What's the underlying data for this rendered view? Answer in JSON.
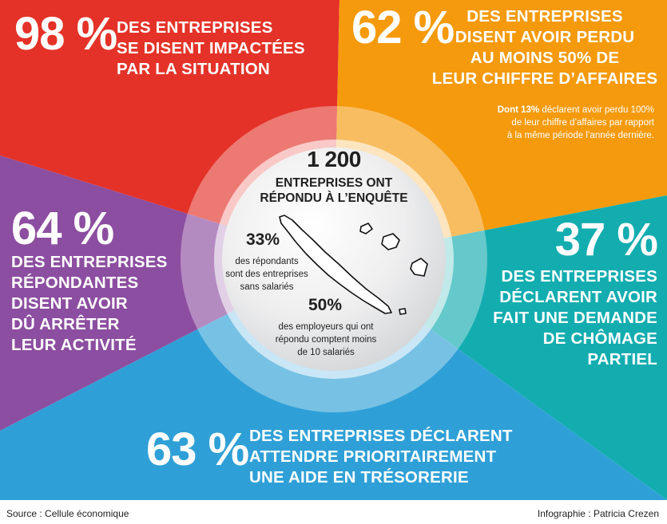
{
  "colors": {
    "red": "#e43228",
    "orange": "#f59a0c",
    "teal": "#13adb0",
    "blue": "#2fa0d7",
    "purple": "#8c4ea0",
    "center": "#e9eaeb"
  },
  "chart_data": {
    "type": "pie",
    "slices": [
      {
        "key": "impacted",
        "value": 98,
        "label": "98 %",
        "text": "DES ENTREPRISES SE DISENT IMPACTÉES PAR LA SITUATION",
        "color": "#e43228"
      },
      {
        "key": "revenue_loss",
        "value": 62,
        "label": "62 %",
        "text": "DES ENTREPRISES DISENT AVOIR PERDU AU MOINS 50% DE LEUR CHIFFRE D’AFFAIRES",
        "color": "#f59a0c"
      },
      {
        "key": "partial_unemployment",
        "value": 37,
        "label": "37 %",
        "text": "DES ENTREPRISES DÉCLARENT AVOIR FAIT UNE DEMANDE DE CHÔMAGE PARTIEL",
        "color": "#13adb0"
      },
      {
        "key": "treasury_aid",
        "value": 63,
        "label": "63 %",
        "text": "DES ENTREPRISES DÉCLARENT ATTENDRE PRIORITAIREMENT UNE AIDE EN TRÉSORERIE",
        "color": "#2fa0d7"
      },
      {
        "key": "stopped_activity",
        "value": 64,
        "label": "64 %",
        "text": "DES ENTREPRISES RÉPONDANTES DISENT AVOIR DÛ ARRÊTER LEUR ACTIVITÉ",
        "color": "#8c4ea0"
      }
    ],
    "center": {
      "respondents": 1200,
      "respondents_label": "1 200",
      "respondents_text": "ENTREPRISES ONT RÉPONDU À L’ENQUÊTE",
      "no_employees_pct": 33,
      "no_employees_label": "33%",
      "no_employees_text": "des répondants sont des entreprises sans salariés",
      "small_employers_pct": 50,
      "small_employers_label": "50%",
      "small_employers_text": "des employeurs qui ont répondu comptent moins de 10 salariés"
    }
  },
  "tiles": {
    "impacted": {
      "pct": "98 %",
      "line1": "DES ENTREPRISES",
      "line2": "SE DISENT IMPACTÉES",
      "line3": "PAR LA SITUATION"
    },
    "revenue_loss": {
      "pct": "62 %",
      "line1": "DES ENTREPRISES",
      "line2": "DISENT AVOIR PERDU",
      "line3": "AU MOINS 50% DE",
      "line4": "LEUR CHIFFRE D’AFFAIRES",
      "note_bold": "Dont 13%",
      "note_rest": " déclarent avoir perdu 100%",
      "note_line2": "de leur chiffre d’affaires par rapport",
      "note_line3": "à la même période l’année dernière."
    },
    "stopped_activity": {
      "pct": "64 %",
      "line1": "DES ENTREPRISES",
      "line2": "RÉPONDANTES",
      "line3": "DISENT AVOIR",
      "line4": "DÛ ARRÊTER",
      "line5": "LEUR ACTIVITÉ"
    },
    "partial_unemployment": {
      "pct": "37 %",
      "line1": "DES ENTREPRISES",
      "line2": "DÉCLARENT AVOIR",
      "line3": "FAIT UNE DEMANDE",
      "line4": "DE CHÔMAGE",
      "line5": "PARTIEL"
    },
    "treasury_aid": {
      "pct": "63 %",
      "line1": "DES ENTREPRISES DÉCLARENT",
      "line2": "ATTENDRE PRIORITAIREMENT",
      "line3": "UNE AIDE EN TRÉSORERIE"
    }
  },
  "center": {
    "count": "1 200",
    "count_line1": "ENTREPRISES ONT",
    "count_line2": "RÉPONDU À L’ENQUÊTE",
    "stat1_pct": "33%",
    "stat1_line1": "des répondants",
    "stat1_line2": "sont des entreprises",
    "stat1_line3": "sans salariés",
    "stat2_pct": "50%",
    "stat2_line1": "des employeurs qui ont",
    "stat2_line2": "répondu comptent moins",
    "stat2_line3": "de 10 salariés",
    "map_icon": "new-caledonia-map-icon"
  },
  "footer": {
    "source": "Source : Cellule économique",
    "credit": "Infographie : Patricia Crezen"
  }
}
